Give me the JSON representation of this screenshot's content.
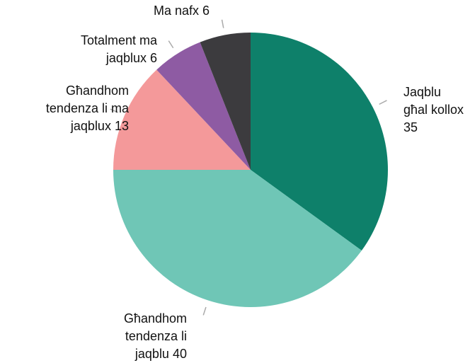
{
  "chart_data": {
    "type": "pie",
    "categories": [
      "Jaqblu għal kollox",
      "Għandhom tendenza li jaqblu",
      "Għandhom tendenza li ma jaqblux",
      "Totalment ma jaqblux",
      "Ma nafx"
    ],
    "values": [
      35,
      40,
      13,
      6,
      6
    ],
    "colors": [
      "#0e806a",
      "#6fc6b6",
      "#f4999a",
      "#8e5ba3",
      "#3c3b3e"
    ]
  }
}
